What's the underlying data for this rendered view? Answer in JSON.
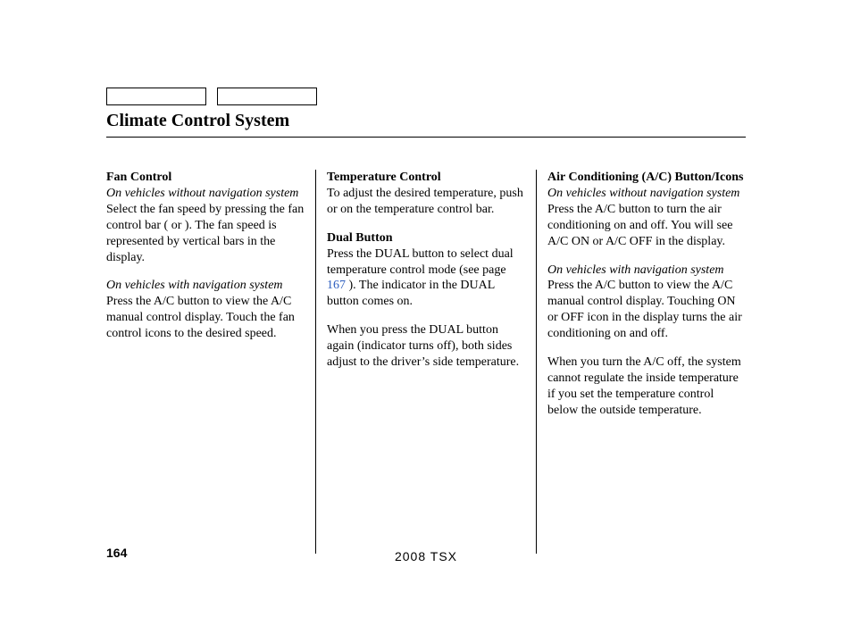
{
  "title": "Climate Control System",
  "page_number": "164",
  "footer": "2008  TSX",
  "link_color": "#2e5fbf",
  "column1": {
    "sec1_title": "Fan Control",
    "sec1_sub_a": "On vehicles without navigation system",
    "sec1_body_a": "Select the fan speed by pressing the fan control bar (               or              ). The fan speed is represented by vertical bars in the display.",
    "sec1_sub_b": "On vehicles with navigation system",
    "sec1_body_b": "Press the A/C button to view the A/C manual control display. Touch the fan control icons to the desired speed."
  },
  "column2": {
    "sec1_title": "Temperature Control",
    "sec1_body": "To adjust the desired temperature, push          or          on the temperature control bar.",
    "sec2_title": "Dual Button",
    "sec2_body_a_pre": "Press the DUAL button to select dual temperature control mode (see page ",
    "sec2_link": "167",
    "sec2_body_a_post": " ). The indicator in the DUAL button comes on.",
    "sec2_body_b": "When you press the DUAL button again (indicator turns off), both sides adjust to the driver’s side temperature."
  },
  "column3": {
    "sec1_title": "Air Conditioning (A/C) Button/Icons",
    "sec1_sub_a": "On vehicles without navigation system",
    "sec1_body_a": "Press the A/C button to turn the air conditioning on and off. You will see A/C ON or A/C OFF in the display.",
    "sec1_sub_b": "On vehicles with navigation system",
    "sec1_body_b": "Press the A/C button to view the A/C manual control display. Touching ON or OFF icon in the display turns the air conditioning on and off.",
    "sec1_body_c": "When you turn the A/C off, the system cannot regulate the inside temperature if you set the temperature control below the outside temperature."
  }
}
